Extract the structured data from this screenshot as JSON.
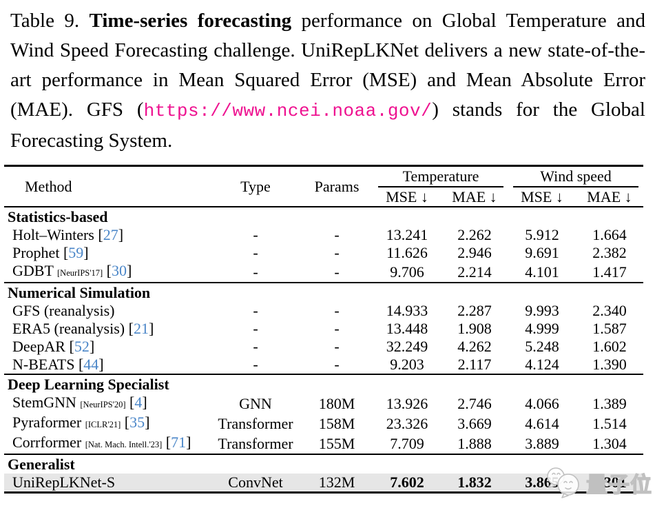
{
  "caption": {
    "label": "Table 9. ",
    "bold": "Time-series forecasting",
    "middle": " performance on Global Temper­ature and Wind Speed Forecasting challenge. UniRepLKNet de­livers a new state-of-the-art performance in Mean Squared Error (MSE) and Mean Absolute Error (MAE). GFS (",
    "url": "https://www.ncei.noaa.gov/",
    "suffix": ") stands for the Global Forecasting System."
  },
  "table": {
    "columns": {
      "method": "Method",
      "type": "Type",
      "params": "Params"
    },
    "groups": [
      {
        "label": "Temperature",
        "sub": [
          "MSE ↓",
          "MAE ↓"
        ]
      },
      {
        "label": "Wind speed",
        "sub": [
          "MSE ↓",
          "MAE ↓"
        ]
      }
    ],
    "cite_brackets": [
      "[",
      "]"
    ],
    "sections": [
      {
        "title": "Statistics-based",
        "rows": [
          {
            "method": "Holt–Winters",
            "venue": "",
            "cite": "27",
            "type": "-",
            "params": "-",
            "values": [
              "13.241",
              "2.262",
              "5.912",
              "1.664"
            ],
            "highlight": false,
            "bold_values": false
          },
          {
            "method": "Prophet",
            "venue": "",
            "cite": "59",
            "type": "-",
            "params": "-",
            "values": [
              "11.626",
              "2.946",
              "9.691",
              "2.382"
            ],
            "highlight": false,
            "bold_values": false
          },
          {
            "method": "GDBT",
            "venue": "[NeurIPS'17]",
            "cite": "30",
            "type": "-",
            "params": "-",
            "values": [
              "9.706",
              "2.214",
              "4.101",
              "1.417"
            ],
            "highlight": false,
            "bold_values": false
          }
        ]
      },
      {
        "title": "Numerical Simulation",
        "rows": [
          {
            "method": "GFS (reanalysis)",
            "venue": "",
            "cite": "",
            "type": "-",
            "params": "-",
            "values": [
              "14.933",
              "2.287",
              "9.993",
              "2.340"
            ],
            "highlight": false,
            "bold_values": false
          },
          {
            "method": "ERA5 (reanalysis)",
            "venue": "",
            "cite": "21",
            "type": "-",
            "params": "-",
            "values": [
              "13.448",
              "1.908",
              "4.999",
              "1.587"
            ],
            "highlight": false,
            "bold_values": false
          },
          {
            "method": "DeepAR",
            "venue": "",
            "cite": "52",
            "type": "-",
            "params": "-",
            "values": [
              "32.249",
              "4.262",
              "5.248",
              "1.602"
            ],
            "highlight": false,
            "bold_values": false
          },
          {
            "method": "N-BEATS",
            "venue": "",
            "cite": "44",
            "type": "-",
            "params": "-",
            "values": [
              "9.203",
              "2.117",
              "4.124",
              "1.390"
            ],
            "highlight": false,
            "bold_values": false
          }
        ]
      },
      {
        "title": "Deep Learning Specialist",
        "rows": [
          {
            "method": "StemGNN",
            "venue": "[NeurIPS'20]",
            "cite": "4",
            "type": "GNN",
            "params": "180M",
            "values": [
              "13.926",
              "2.746",
              "4.066",
              "1.389"
            ],
            "highlight": false,
            "bold_values": false
          },
          {
            "method": "Pyraformer",
            "venue": "[ICLR'21]",
            "cite": "35",
            "type": "Transformer",
            "params": "158M",
            "values": [
              "23.326",
              "3.669",
              "4.614",
              "1.514"
            ],
            "highlight": false,
            "bold_values": false
          },
          {
            "method": "Corrformer",
            "venue": "[Nat. Mach. Intell.'23]",
            "cite": "71",
            "type": "Transformer",
            "params": "155M",
            "values": [
              "7.709",
              "1.888",
              "3.889",
              "1.304"
            ],
            "highlight": false,
            "bold_values": false
          }
        ]
      },
      {
        "title": "Generalist",
        "rows": [
          {
            "method": "UniRepLKNet-S",
            "venue": "",
            "cite": "",
            "type": "ConvNet",
            "params": "132M",
            "values": [
              "7.602",
              "1.832",
              "3.865",
              "1.301"
            ],
            "highlight": true,
            "bold_values": true
          }
        ]
      }
    ]
  },
  "watermark": {
    "text": "量子位"
  },
  "colors": {
    "cite_blue": "#4a86c8",
    "url_magenta": "#ee1290",
    "highlight_bg": "#e6e6e6",
    "watermark_gray": "#c0c0c0"
  }
}
